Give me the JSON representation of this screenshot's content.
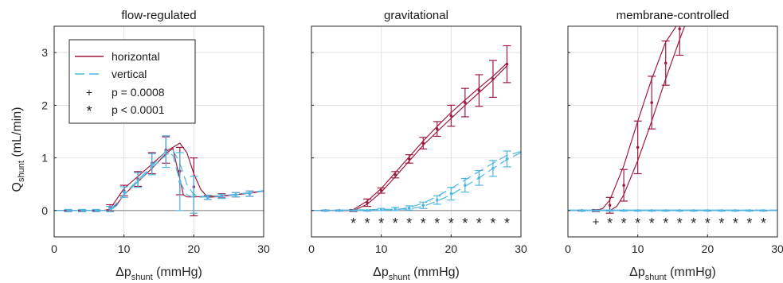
{
  "colors": {
    "horizontal": "#9e1b3e",
    "vertical": "#4fb6e3",
    "grid": "#e1e1e1",
    "axis": "#262626"
  },
  "figure": {
    "ylabel": {
      "main": "Q",
      "sub": "shunt",
      "unit": "(mL/min)"
    },
    "xlabel": {
      "main": "Δp",
      "sub": "shunt",
      "unit": "(mmHg)"
    },
    "legend": {
      "horizontal": "horizontal",
      "vertical": "vertical",
      "sig1": "p = 0.0008",
      "sig2": "p < 0.0001",
      "sig1_marker": "+",
      "sig2_marker": "*"
    }
  },
  "chart_data": [
    {
      "type": "line",
      "title": "flow-regulated",
      "xlim": [
        0,
        30
      ],
      "ylim": [
        -0.5,
        3.5
      ],
      "xticks": [
        0,
        10,
        20,
        30
      ],
      "yticks": [
        0,
        1,
        2,
        3
      ],
      "grid": true,
      "legend_position": "top-left",
      "x": [
        2,
        4,
        6,
        8,
        10,
        12,
        14,
        16,
        18,
        20,
        22,
        24,
        26,
        28
      ],
      "series": [
        {
          "name": "horizontal",
          "mean": [
            0,
            0,
            0,
            0.05,
            0.38,
            0.6,
            0.9,
            1.15,
            0.75,
            0.45,
            0.25,
            0.28,
            0.3,
            0.32
          ],
          "err": [
            0.02,
            0.02,
            0.02,
            0.06,
            0.1,
            0.14,
            0.2,
            0.25,
            0.45,
            0.55,
            0.04,
            0.04,
            0.04,
            0.05
          ],
          "curves": [
            {
              "x": [
                0,
                7,
                8,
                10,
                12,
                14,
                16,
                17,
                18,
                19,
                20,
                21,
                22,
                24,
                26,
                28,
                30
              ],
              "y": [
                0,
                0,
                0.03,
                0.42,
                0.65,
                0.88,
                1.12,
                1.2,
                1.28,
                1.1,
                0.7,
                0.4,
                0.25,
                0.27,
                0.3,
                0.33,
                0.37
              ]
            },
            {
              "x": [
                0,
                8,
                9,
                10,
                12,
                14,
                16,
                17,
                18,
                18.5,
                19,
                20,
                22,
                24,
                26,
                28,
                30
              ],
              "y": [
                0,
                0,
                0.12,
                0.3,
                0.55,
                0.8,
                1.08,
                1.18,
                0.6,
                0.3,
                0.26,
                0.26,
                0.27,
                0.28,
                0.3,
                0.34,
                0.37
              ]
            }
          ]
        },
        {
          "name": "vertical",
          "mean": [
            0,
            0,
            0,
            0.03,
            0.35,
            0.58,
            0.88,
            1.12,
            0.55,
            0.3,
            0.25,
            0.27,
            0.3,
            0.32
          ],
          "err": [
            0.02,
            0.02,
            0.02,
            0.05,
            0.1,
            0.14,
            0.2,
            0.3,
            0.55,
            0.35,
            0.04,
            0.04,
            0.04,
            0.05
          ],
          "curves": [
            {
              "x": [
                0,
                8,
                9,
                10,
                12,
                14,
                16,
                17,
                18,
                19,
                20,
                22,
                24,
                26,
                28,
                30
              ],
              "y": [
                0,
                0,
                0.1,
                0.32,
                0.58,
                0.85,
                1.12,
                1.05,
                0.55,
                0.3,
                0.25,
                0.26,
                0.28,
                0.31,
                0.34,
                0.38
              ]
            },
            {
              "x": [
                0,
                8,
                10,
                12,
                14,
                16,
                17,
                18,
                19,
                20,
                22,
                24,
                26,
                28,
                30
              ],
              "y": [
                0,
                0,
                0.3,
                0.55,
                0.82,
                1.05,
                1.15,
                0.9,
                0.5,
                0.3,
                0.25,
                0.27,
                0.3,
                0.33,
                0.37
              ]
            }
          ]
        }
      ],
      "significance": []
    },
    {
      "type": "line",
      "title": "gravitational",
      "xlim": [
        0,
        30
      ],
      "ylim": [
        -0.5,
        3.5
      ],
      "xticks": [
        0,
        10,
        20,
        30
      ],
      "yticks": [
        0,
        1,
        2,
        3
      ],
      "grid": true,
      "x": [
        2,
        4,
        6,
        8,
        10,
        12,
        14,
        16,
        18,
        20,
        22,
        24,
        26,
        28
      ],
      "series": [
        {
          "name": "horizontal",
          "mean": [
            0,
            0,
            0,
            0.15,
            0.38,
            0.68,
            0.98,
            1.28,
            1.55,
            1.8,
            2.05,
            2.28,
            2.5,
            2.78
          ],
          "err": [
            0.01,
            0.01,
            0.02,
            0.07,
            0.05,
            0.06,
            0.08,
            0.11,
            0.14,
            0.2,
            0.27,
            0.3,
            0.35,
            0.35
          ],
          "curves": [
            {
              "x": [
                0,
                5,
                6,
                8,
                10,
                12,
                14,
                16,
                18,
                20,
                22,
                24,
                26,
                28
              ],
              "y": [
                0,
                0,
                0.02,
                0.18,
                0.42,
                0.72,
                1.02,
                1.32,
                1.6,
                1.86,
                2.1,
                2.33,
                2.55,
                2.8
              ]
            },
            {
              "x": [
                0,
                6,
                8,
                10,
                12,
                14,
                16,
                18,
                20,
                22,
                24,
                26,
                28
              ],
              "y": [
                0,
                0,
                0.12,
                0.35,
                0.64,
                0.94,
                1.24,
                1.5,
                1.75,
                2.0,
                2.24,
                2.48,
                2.75
              ]
            }
          ]
        },
        {
          "name": "vertical",
          "mean": [
            0,
            0,
            0,
            0,
            0.02,
            0.03,
            0.05,
            0.1,
            0.2,
            0.32,
            0.48,
            0.62,
            0.8,
            0.98
          ],
          "err": [
            0.01,
            0.01,
            0.01,
            0.01,
            0.02,
            0.03,
            0.04,
            0.06,
            0.08,
            0.12,
            0.13,
            0.14,
            0.15,
            0.15
          ],
          "curves": [
            {
              "x": [
                0,
                12,
                14,
                16,
                18,
                20,
                22,
                24,
                26,
                28,
                30
              ],
              "y": [
                0,
                0.01,
                0.06,
                0.14,
                0.27,
                0.42,
                0.58,
                0.74,
                0.9,
                1.05,
                1.12
              ]
            },
            {
              "x": [
                0,
                14,
                16,
                18,
                20,
                22,
                24,
                26,
                28,
                30
              ],
              "y": [
                0,
                0.03,
                0.08,
                0.18,
                0.3,
                0.46,
                0.62,
                0.8,
                0.97,
                1.1
              ]
            }
          ]
        }
      ],
      "significance": [
        {
          "x": 6,
          "marker": "*"
        },
        {
          "x": 8,
          "marker": "*"
        },
        {
          "x": 10,
          "marker": "*"
        },
        {
          "x": 12,
          "marker": "*"
        },
        {
          "x": 14,
          "marker": "*"
        },
        {
          "x": 16,
          "marker": "*"
        },
        {
          "x": 18,
          "marker": "*"
        },
        {
          "x": 20,
          "marker": "*"
        },
        {
          "x": 22,
          "marker": "*"
        },
        {
          "x": 24,
          "marker": "*"
        },
        {
          "x": 26,
          "marker": "*"
        },
        {
          "x": 28,
          "marker": "*"
        }
      ]
    },
    {
      "type": "line",
      "title": "membrane-controlled",
      "xlim": [
        0,
        30
      ],
      "ylim": [
        -0.5,
        3.5
      ],
      "xticks": [
        0,
        10,
        20,
        30
      ],
      "yticks": [
        0,
        1,
        2,
        3
      ],
      "grid": true,
      "x": [
        2,
        4,
        6,
        8,
        10,
        12,
        14,
        16,
        18,
        20,
        22,
        24,
        26,
        28
      ],
      "series": [
        {
          "name": "horizontal",
          "mean": [
            0,
            0,
            0.1,
            0.48,
            1.2,
            2.05,
            2.8,
            3.45
          ],
          "err": [
            0.01,
            0.02,
            0.15,
            0.3,
            0.5,
            0.5,
            0.42,
            0.5
          ],
          "curves": [
            {
              "x": [
                0,
                4,
                5,
                6,
                8,
                10,
                12,
                14,
                16
              ],
              "y": [
                0,
                0,
                0.04,
                0.2,
                0.85,
                1.7,
                2.5,
                3.2,
                3.6
              ]
            },
            {
              "x": [
                0,
                6,
                7,
                8,
                10,
                12,
                14,
                16,
                17
              ],
              "y": [
                0,
                0,
                0.08,
                0.3,
                0.95,
                1.7,
                2.5,
                3.25,
                3.6
              ]
            }
          ]
        },
        {
          "name": "vertical",
          "mean": [
            0,
            0,
            0,
            0,
            0,
            0,
            0,
            0,
            0,
            0,
            0,
            0,
            0,
            0
          ],
          "err": [
            0.01,
            0.01,
            0.01,
            0.01,
            0.01,
            0.01,
            0.01,
            0.01,
            0.01,
            0.01,
            0.01,
            0.01,
            0.01,
            0.01
          ],
          "curves": [
            {
              "x": [
                0,
                30
              ],
              "y": [
                0,
                0
              ]
            },
            {
              "x": [
                0,
                30
              ],
              "y": [
                0.01,
                0.01
              ]
            }
          ]
        }
      ],
      "significance": [
        {
          "x": 4,
          "marker": "+"
        },
        {
          "x": 6,
          "marker": "*"
        },
        {
          "x": 8,
          "marker": "*"
        },
        {
          "x": 10,
          "marker": "*"
        },
        {
          "x": 12,
          "marker": "*"
        },
        {
          "x": 14,
          "marker": "*"
        },
        {
          "x": 16,
          "marker": "*"
        },
        {
          "x": 18,
          "marker": "*"
        },
        {
          "x": 20,
          "marker": "*"
        },
        {
          "x": 22,
          "marker": "*"
        },
        {
          "x": 24,
          "marker": "*"
        },
        {
          "x": 26,
          "marker": "*"
        },
        {
          "x": 28,
          "marker": "*"
        }
      ]
    }
  ]
}
